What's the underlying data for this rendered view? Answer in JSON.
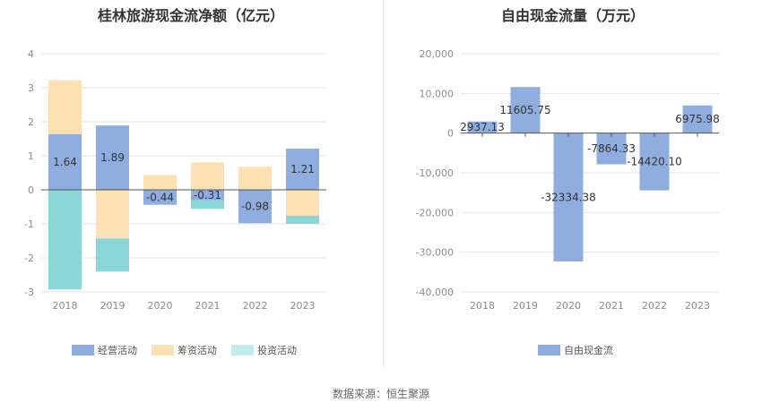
{
  "colors": {
    "operating": "#8faddf",
    "financing": "#fee1b2",
    "investing": "#8ad6d9",
    "investing_legend": "#c2ebeb",
    "fcf": "#8faddf",
    "grid": "#e6e6e6",
    "zero_line": "#555555"
  },
  "source": "数据来源：恒生聚源",
  "chart_data": [
    {
      "type": "bar",
      "stacked": true,
      "title": "桂林旅游现金流净额（亿元）",
      "categories": [
        "2018",
        "2019",
        "2020",
        "2021",
        "2022",
        "2023"
      ],
      "ylim": [
        -3,
        4
      ],
      "yticks": [
        "4",
        "3",
        "2",
        "1",
        "0",
        "-1",
        "-2",
        "-3"
      ],
      "ytick_values": [
        4,
        3,
        2,
        1,
        0,
        -1,
        -2,
        -3
      ],
      "series": [
        {
          "name": "经营活动",
          "key": "operating",
          "values": [
            1.64,
            1.89,
            -0.44,
            -0.31,
            -0.98,
            1.21
          ],
          "labels": [
            "1.64",
            "1.89",
            "-0.44",
            "-0.31",
            "-0.98",
            "1.21"
          ]
        },
        {
          "name": "筹资活动",
          "key": "financing",
          "values": [
            1.58,
            -1.43,
            0.44,
            0.8,
            0.68,
            -0.76
          ]
        },
        {
          "name": "投资活动",
          "key": "investing",
          "values": [
            -2.93,
            -0.97,
            -0.0,
            -0.25,
            -0.0,
            -0.24
          ]
        }
      ],
      "legend": [
        "经营活动",
        "筹资活动",
        "投资活动"
      ]
    },
    {
      "type": "bar",
      "title": "自由现金流量（万元）",
      "categories": [
        "2018",
        "2019",
        "2020",
        "2021",
        "2022",
        "2023"
      ],
      "ylim": [
        -40000,
        20000
      ],
      "yticks": [
        "20,000",
        "10,000",
        "0",
        "-10,000",
        "-20,000",
        "-30,000",
        "-40,000"
      ],
      "ytick_values": [
        20000,
        10000,
        0,
        -10000,
        -20000,
        -30000,
        -40000
      ],
      "series": [
        {
          "name": "自由现金流",
          "key": "fcf",
          "values": [
            2937.13,
            11605.75,
            -32334.38,
            -7864.33,
            -14420.1,
            6975.98
          ],
          "labels": [
            "2937.13",
            "11605.75",
            "-32334.38",
            "-7864.33",
            "-14420.10",
            "6975.98"
          ]
        }
      ],
      "legend": [
        "自由现金流"
      ]
    }
  ]
}
